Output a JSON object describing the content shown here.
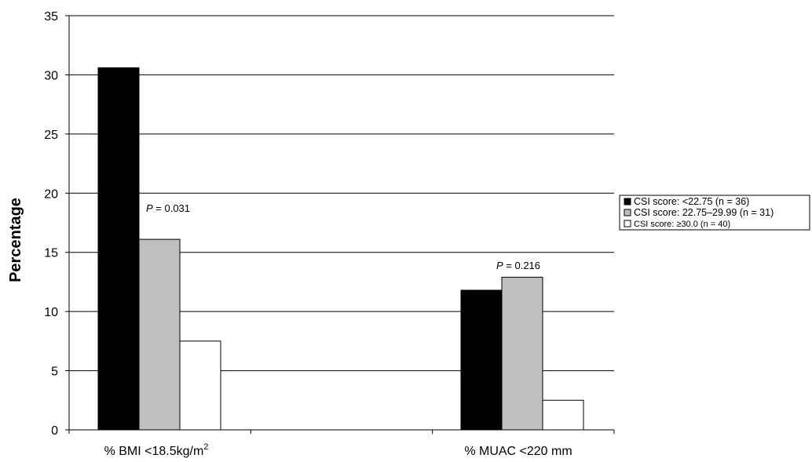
{
  "chart_data": {
    "type": "bar",
    "ylabel": "Percentage",
    "ylim": [
      0,
      35
    ],
    "yticks": [
      0,
      5,
      10,
      15,
      20,
      25,
      30,
      35
    ],
    "grid": true,
    "legend_position": "right",
    "categories": [
      "% BMI <18.5kg/m",
      "% MUAC <220 mm"
    ],
    "category_superscripts": [
      "2",
      ""
    ],
    "series": [
      {
        "name": "CSI score: <22.75 (n = 36)",
        "color": "#000000",
        "values": [
          30.6,
          11.8
        ]
      },
      {
        "name": "CSI score: 22.75–29.99 (n = 31)",
        "color": "#bfbfbf",
        "values": [
          16.1,
          12.9
        ]
      },
      {
        "name": "CSI score: ≥30.0 (n = 40)",
        "color": "#ffffff",
        "values": [
          7.5,
          2.5
        ]
      }
    ],
    "annotations": [
      {
        "category": 0,
        "p_label": "P",
        "text": " = 0.031"
      },
      {
        "category": 1,
        "p_label": "P",
        "text": " = 0.216"
      }
    ]
  }
}
